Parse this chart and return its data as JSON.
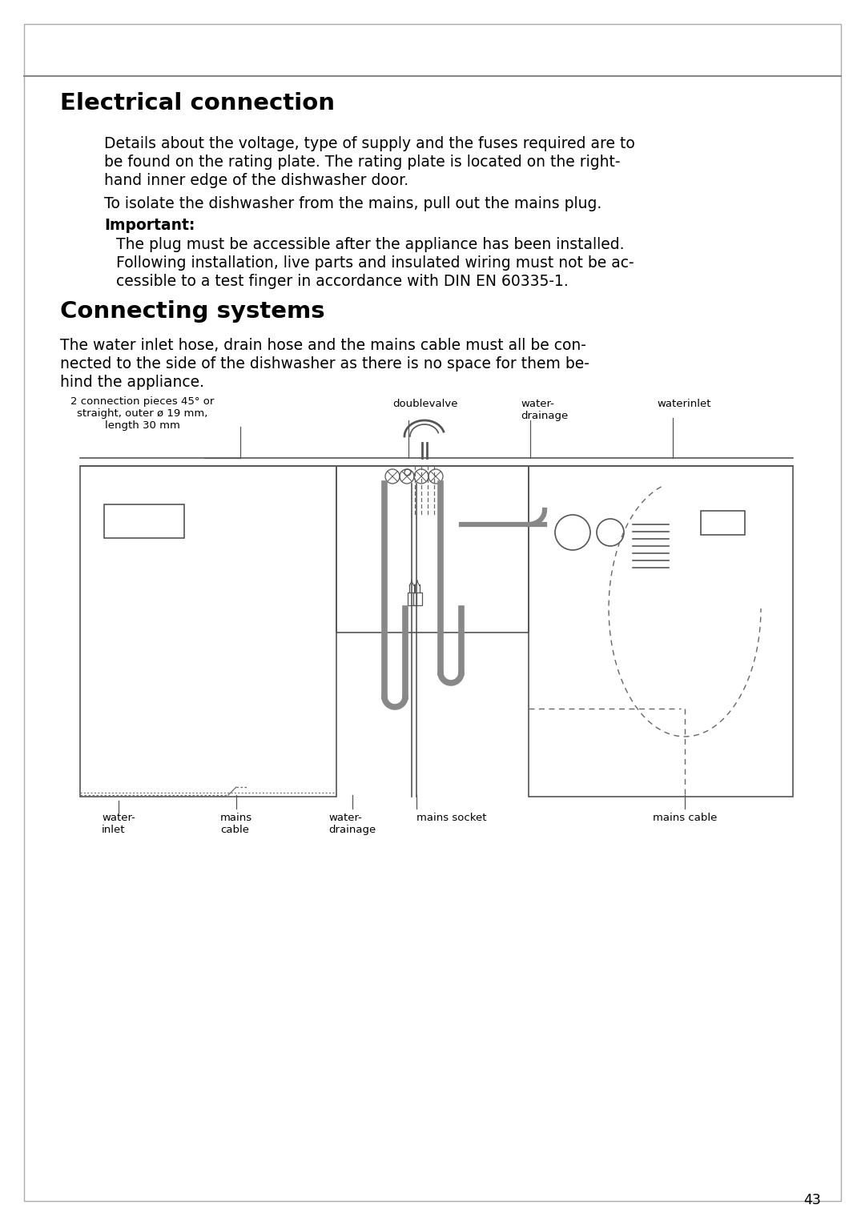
{
  "page_bg": "#ffffff",
  "border_color": "#aaaaaa",
  "text_color": "#000000",
  "title1": "Electrical connection",
  "title2": "Connecting systems",
  "para1_line1": "Details about the voltage, type of supply and the fuses required are to",
  "para1_line2": "be found on the rating plate. The rating plate is located on the right-",
  "para1_line3": "hand inner edge of the dishwasher door.",
  "para2": "To isolate the dishwasher from the mains, pull out the mains plug.",
  "important_label": "Important:",
  "para3_line1": "The plug must be accessible after the appliance has been installed.",
  "para3_line2": "Following installation, live parts and insulated wiring must not be ac-",
  "para3_line3": "cessible to a test finger in accordance with DIN EN 60335-1.",
  "para4_line1": "The water inlet hose, drain hose and the mains cable must all be con-",
  "para4_line2": "nected to the side of the dishwasher as there is no space for them be-",
  "para4_line3": "hind the appliance.",
  "page_number": "43",
  "line_color": "#555555",
  "hose_color": "#888888",
  "dash_color": "#666666"
}
